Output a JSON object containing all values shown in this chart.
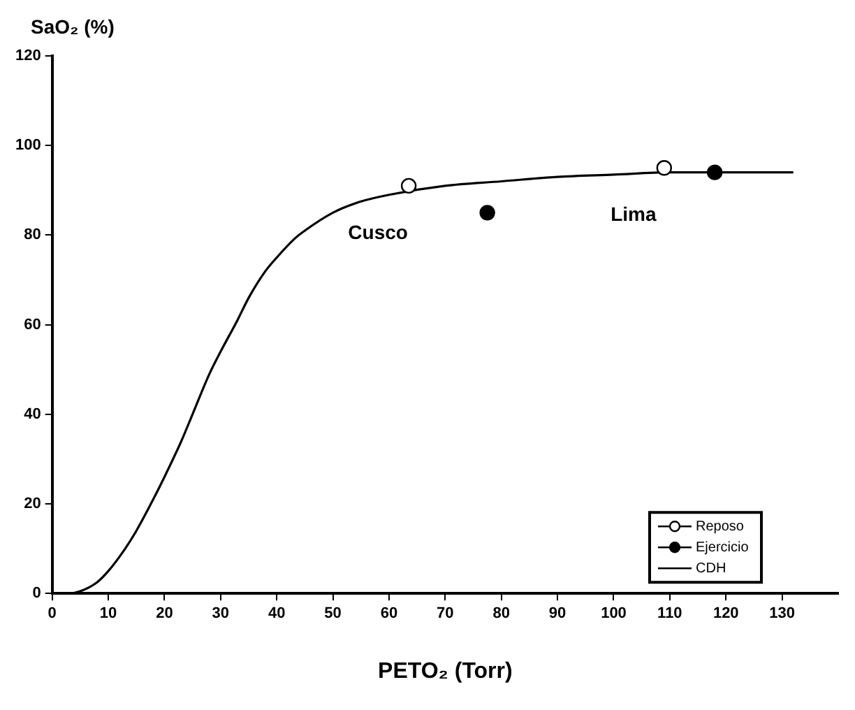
{
  "chart_data": {
    "type": "scatter",
    "xlabel": "PETO₂ (Torr)",
    "ylabel": "SaO₂ (%)",
    "xlim": [
      0,
      140
    ],
    "xticks": [
      0,
      10,
      20,
      30,
      40,
      50,
      60,
      70,
      80,
      90,
      100,
      110,
      120,
      130
    ],
    "ylim": [
      0,
      120
    ],
    "yticks": [
      0,
      20,
      40,
      60,
      80,
      100,
      120
    ],
    "grid": false,
    "legend": "bottom right",
    "marker": "circle",
    "series": [
      {
        "name": "Reposo",
        "color": "#ffffff",
        "x": [
          63.5,
          109
        ],
        "values": [
          91,
          95
        ]
      },
      {
        "name": "Ejercicio",
        "color": "#000000",
        "x": [
          77.5,
          118
        ],
        "values": [
          85,
          94
        ]
      },
      {
        "name": "CDH",
        "type": "line",
        "color": "#000000",
        "marker": "none",
        "x": [
          0,
          3,
          5,
          8,
          10,
          13,
          15,
          18,
          20,
          23,
          25,
          28,
          30,
          33,
          35,
          38,
          40,
          43,
          45,
          50,
          55,
          60,
          70,
          80,
          90,
          100,
          110,
          120,
          132
        ],
        "values": [
          0,
          0,
          0.5,
          2.5,
          5,
          10,
          14,
          21,
          26,
          34,
          40,
          49,
          54,
          61,
          66,
          72,
          75,
          79,
          81,
          85,
          87.5,
          89,
          91,
          92,
          93,
          93.5,
          94,
          94,
          94
        ]
      }
    ],
    "annotations": [
      "Cusco",
      "Lima"
    ]
  }
}
